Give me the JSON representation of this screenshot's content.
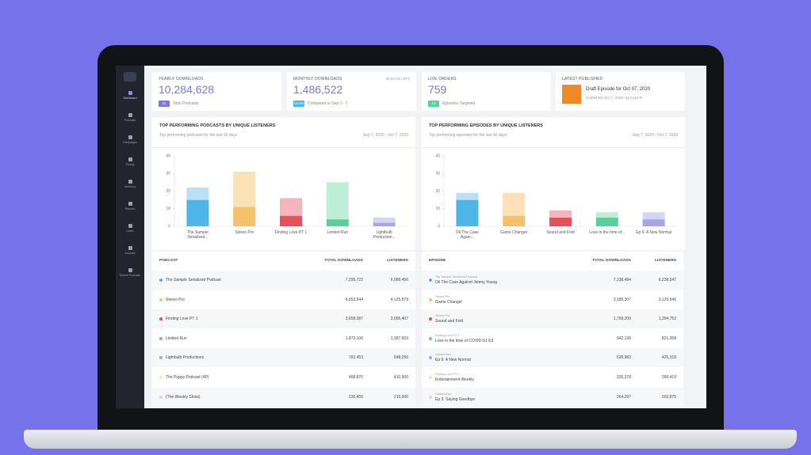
{
  "sidebar": [
    "Dashboard",
    "Podcasts",
    "Campaigns",
    "Pricing",
    "Inventory",
    "Reports",
    "Users",
    "Invoices",
    "Submit Podcasts"
  ],
  "cards": [
    {
      "label": "YEARLY DOWNLOADS",
      "value": "10,284,628",
      "badge": "24",
      "note": "Total Podcasts",
      "badge_color": "#7b76e0"
    },
    {
      "label": "MONTHLY DOWNLOADS",
      "tag": "30 DAYS LEFT",
      "value": "1,486,522",
      "badge": "13.4%",
      "note": "Compared to Sep 1 - 7",
      "badge_color": "#4db6e8"
    },
    {
      "label": "LIVE ORDERS",
      "value": "759",
      "badge": "13",
      "note": "Episodes Targeted",
      "badge_color": "#5ccf9f"
    },
    {
      "label": "LATEST PUBLISHED",
      "headline": "Draft Episode for Oct 07, 2020",
      "note": "Published Oct 7, 2020, by Kyra R."
    }
  ],
  "chart_data": [
    {
      "type": "bar",
      "stacked": true,
      "title": "TOP PERFORMING PODCASTS BY UNIQUE LISTENERS",
      "subtitle": "Top performing podcasts for the last 30 days",
      "date_range": "Sep 7, 2020 - Oct 7, 2020",
      "categories": [
        "The Sample Serialized...",
        "Stereo Pro",
        "Finding Love PT 1",
        "Limited Run",
        "Lightbulb Production..."
      ],
      "series": [
        {
          "values": [
            15,
            11,
            6,
            4,
            2
          ],
          "colors": [
            "#4db6e8",
            "#f5c26b",
            "#e8505b",
            "#5ccf9f",
            "#a8a4e8"
          ]
        },
        {
          "values": [
            7,
            20,
            10,
            21,
            3
          ],
          "colors": [
            "#b9e0f5",
            "#fbe1b5",
            "#f5b5ba",
            "#bdeed8",
            "#d6d4f5"
          ]
        }
      ],
      "ylim": [
        0,
        40
      ],
      "yticks": [
        0,
        10,
        20,
        30,
        40
      ]
    },
    {
      "type": "bar",
      "stacked": true,
      "title": "TOP PERFORMING EPISODES BY UNIQUE LISTENERS",
      "subtitle": "Top performing episodes for the last 30 days",
      "date_range": "Sep 7, 2020 - Oct 7, 2020",
      "categories": [
        "Oil The Case Again...",
        "Game Changer",
        "Sound and Fold",
        "Love in the time of...",
        "Ep 6: A New Normal"
      ],
      "series": [
        {
          "values": [
            15,
            6,
            5,
            5,
            4
          ],
          "colors": [
            "#4db6e8",
            "#f5c26b",
            "#e8505b",
            "#5ccf9f",
            "#a8a4e8"
          ]
        },
        {
          "values": [
            4,
            13,
            4,
            3,
            4
          ],
          "colors": [
            "#b9e0f5",
            "#fbe1b5",
            "#f5b5ba",
            "#bdeed8",
            "#d6d4f5"
          ]
        }
      ],
      "ylim": [
        0,
        40
      ],
      "yticks": [
        0,
        10,
        20,
        30,
        40
      ]
    }
  ],
  "tables": [
    {
      "columns": [
        "PODCAST",
        "TOTAL DOWNLOADS",
        "LISTENERS"
      ],
      "rows": [
        {
          "dot": "#4db6e8",
          "name": "The Sample Serialized Podcast",
          "downloads": "7,295,722",
          "listeners": "6,089,456"
        },
        {
          "dot": "#f5c26b",
          "name": "Stereo Pro",
          "downloads": "6,652,644",
          "listeners": "4,125,879"
        },
        {
          "dot": "#e8505b",
          "name": "Finding Love PT 1",
          "downloads": "3,659,087",
          "listeners": "3,095,407"
        },
        {
          "dot": "#5ccf9f",
          "name": "Limited Run",
          "downloads": "1,873,106",
          "listeners": "1,387,903"
        },
        {
          "dot": "#a8a4e8",
          "name": "Lightbulb Productions",
          "downloads": "762,453",
          "listeners": "648,256"
        },
        {
          "dot": "#fbe1b5",
          "name": "The Puppy Podcast (4P)",
          "downloads": "468,870",
          "listeners": "410,900"
        },
        {
          "dot": "#d6d4f5",
          "name": "(The Weekly Show)",
          "downloads": "236,455",
          "listeners": "215,000"
        }
      ]
    },
    {
      "columns": [
        "EPISODE",
        "TOTAL DOWNLOADS",
        "LISTENERS"
      ],
      "rows": [
        {
          "dot": "#4db6e8",
          "podcast": "The Sample Serialized Podcast",
          "name": "Oil The Case Against Jimmy Young",
          "downloads": "7,338,484",
          "listeners": "6,238,547"
        },
        {
          "dot": "#f5c26b",
          "podcast": "Stereo Pro",
          "name": "Game Changer",
          "downloads": "3,185,307",
          "listeners": "3,120,546"
        },
        {
          "dot": "#e8505b",
          "podcast": "Stereo Pro",
          "name": "Sound and Fold",
          "downloads": "1,769,209",
          "listeners": "1,394,752"
        },
        {
          "dot": "#5ccf9f",
          "podcast": "Finding Love PT 1",
          "name": "Love in the time of COVID-S1 E3",
          "downloads": "942,136",
          "listeners": "821,358"
        },
        {
          "dot": "#a8a4e8",
          "podcast": "Limited Run",
          "name": "Ep 6: A New Normal",
          "downloads": "528,983",
          "listeners": "425,318"
        },
        {
          "dot": "#fbe1b5",
          "podcast": "Finding Love PT 1",
          "name": "Entertainment Weekly",
          "downloads": "326,278",
          "listeners": "266,419"
        },
        {
          "dot": "#d6d4f5",
          "podcast": "Limited Run",
          "name": "Ep 3: Saying Goodbye",
          "downloads": "264,297",
          "listeners": "202,875"
        }
      ]
    }
  ]
}
